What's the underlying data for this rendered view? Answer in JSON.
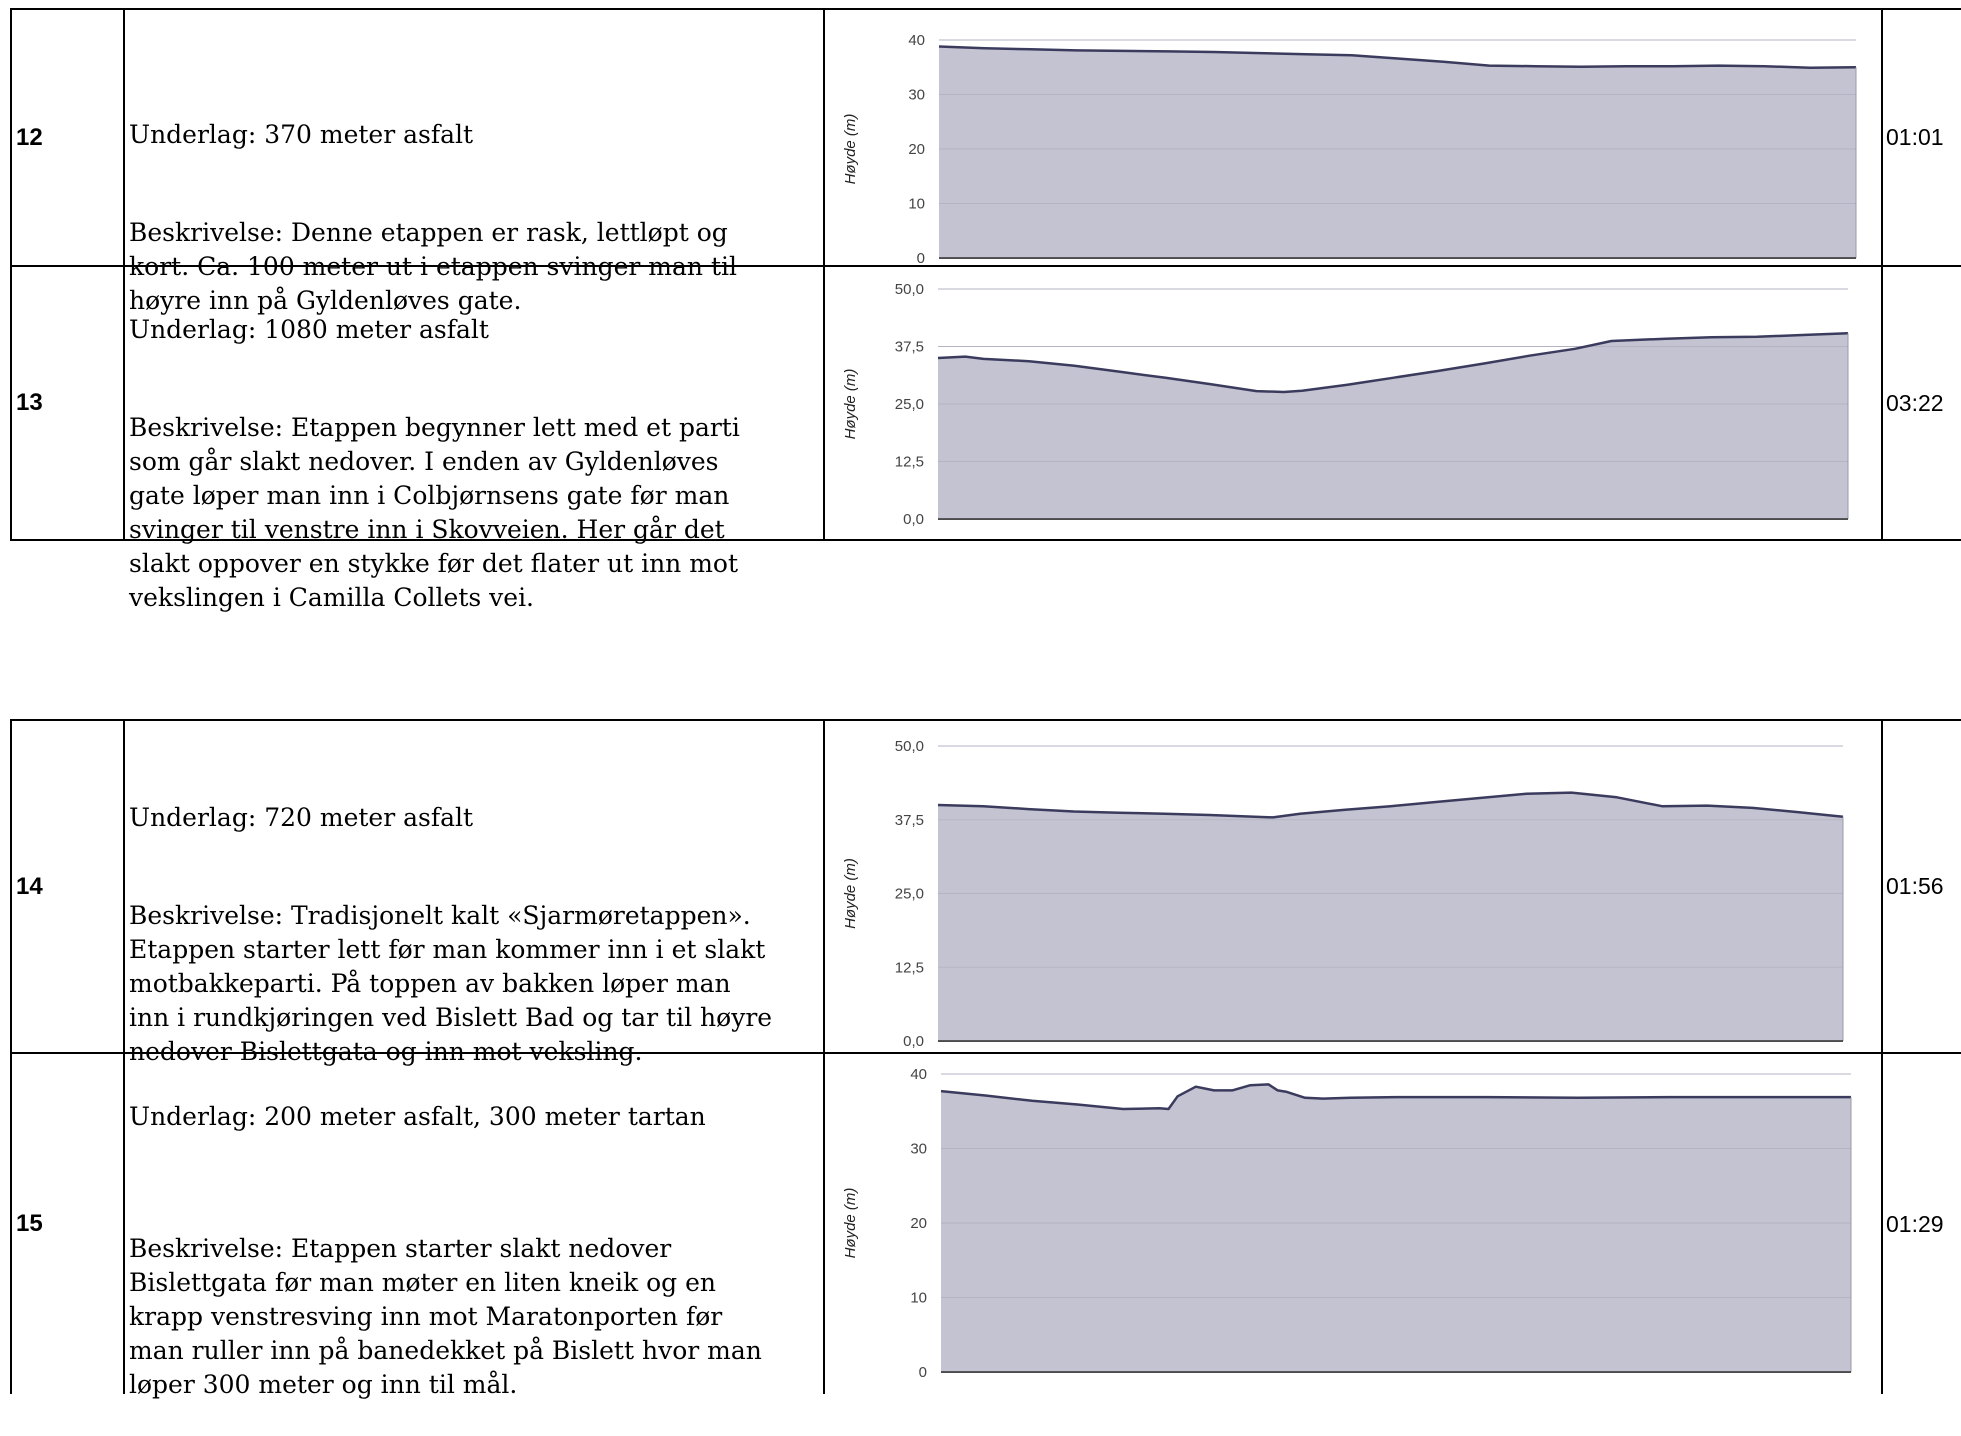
{
  "rows": [
    {
      "stage": "12",
      "surface": "Underlag: 370 meter asfalt",
      "description": "Beskrivelse: Denne etappen er rask, lettløpt og\nkort. Ca. 100 meter ut i etappen svinger man til\nhøyre inn på Gyldenløves gate.",
      "time": "01:01"
    },
    {
      "stage": "13",
      "surface": "Underlag: 1080 meter asfalt",
      "description": "Beskrivelse: Etappen begynner lett med et parti\nsom går slakt nedover. I enden av Gyldenløves\ngate løper man inn i Colbjørnsens gate før man\nsvinger til venstre inn i Skovveien. Her går det\nslakt oppover en stykke før det flater ut inn mot\nvekslingen i Camilla Collets vei.",
      "time": "03:22"
    },
    {
      "stage": "14",
      "surface": "Underlag: 720 meter asfalt",
      "description": "Beskrivelse: Tradisjonelt kalt «Sjarmøretappen».\nEtappen starter lett før man kommer inn i et slakt\nmotbakkeparti. På toppen av bakken løper man\ninn i rundkjøringen ved Bislett Bad og tar til høyre\nnedover Bislettgata og inn mot veksling.",
      "time": "01:56"
    },
    {
      "stage": "15",
      "surface": "Underlag: 200 meter asfalt, 300 meter tartan",
      "description": "Beskrivelse: Etappen starter slakt nedover\nBislettgata før man møter en liten kneik og en\nkrapp venstresving inn mot Maratonporten før\nman ruller inn på banedekket på Bislett hvor man\nløper 300 meter og inn til mål.",
      "time": "01:29"
    }
  ],
  "chart_data": [
    {
      "type": "area",
      "ylabel": "Høyde (m)",
      "ylim": [
        0,
        40
      ],
      "yticks": [
        "0",
        "10",
        "20",
        "30",
        "40"
      ],
      "grid": true,
      "color": "#c3c3d1",
      "line_color": "#3b3b5e",
      "x": [
        0,
        0.05,
        0.1,
        0.15,
        0.2,
        0.25,
        0.3,
        0.35,
        0.4,
        0.45,
        0.5,
        0.55,
        0.6,
        0.65,
        0.7,
        0.75,
        0.8,
        0.85,
        0.9,
        0.95,
        1.0
      ],
      "values": [
        38.8,
        38.5,
        38.3,
        38.1,
        38.0,
        37.9,
        37.8,
        37.6,
        37.4,
        37.2,
        36.6,
        36.0,
        35.3,
        35.2,
        35.1,
        35.2,
        35.2,
        35.3,
        35.2,
        34.9,
        35.0
      ]
    },
    {
      "type": "area",
      "ylabel": "Høyde (m)",
      "ylim": [
        0,
        50
      ],
      "yticks": [
        "0,0",
        "12,5",
        "25,0",
        "37,5",
        "50,0"
      ],
      "grid": true,
      "color": "#c3c3d1",
      "line_color": "#3b3b5e",
      "x": [
        0,
        0.03,
        0.05,
        0.1,
        0.15,
        0.2,
        0.25,
        0.3,
        0.35,
        0.38,
        0.4,
        0.45,
        0.5,
        0.55,
        0.6,
        0.65,
        0.7,
        0.74,
        0.8,
        0.85,
        0.9,
        0.95,
        1.0
      ],
      "values": [
        35.0,
        35.3,
        34.8,
        34.3,
        33.3,
        32.0,
        30.7,
        29.3,
        27.8,
        27.6,
        27.9,
        29.2,
        30.7,
        32.2,
        33.8,
        35.5,
        37.0,
        38.7,
        39.2,
        39.5,
        39.6,
        40.0,
        40.4
      ]
    },
    {
      "type": "area",
      "ylabel": "Høyde (m)",
      "ylim": [
        0,
        50
      ],
      "yticks": [
        "0,0",
        "12,5",
        "25,0",
        "37,5",
        "50,0"
      ],
      "grid": true,
      "color": "#c3c3d1",
      "line_color": "#3b3b5e",
      "x": [
        0,
        0.05,
        0.1,
        0.15,
        0.2,
        0.25,
        0.3,
        0.35,
        0.37,
        0.4,
        0.45,
        0.5,
        0.55,
        0.6,
        0.65,
        0.7,
        0.75,
        0.8,
        0.85,
        0.9,
        0.95,
        1.0
      ],
      "values": [
        40.0,
        39.8,
        39.3,
        38.9,
        38.7,
        38.5,
        38.3,
        38.0,
        37.9,
        38.5,
        39.2,
        39.8,
        40.5,
        41.2,
        41.9,
        42.1,
        41.3,
        39.8,
        39.9,
        39.5,
        38.8,
        38.0
      ]
    },
    {
      "type": "area",
      "ylabel": "Høyde (m)",
      "ylim": [
        0,
        40
      ],
      "yticks": [
        "0",
        "10",
        "20",
        "30",
        "40"
      ],
      "grid": true,
      "color": "#c3c3d1",
      "line_color": "#3b3b5e",
      "x": [
        0,
        0.05,
        0.1,
        0.15,
        0.2,
        0.24,
        0.25,
        0.26,
        0.28,
        0.3,
        0.32,
        0.34,
        0.36,
        0.37,
        0.38,
        0.4,
        0.42,
        0.45,
        0.5,
        0.6,
        0.7,
        0.8,
        0.9,
        1.0
      ],
      "values": [
        37.7,
        37.1,
        36.4,
        35.9,
        35.3,
        35.4,
        35.3,
        37.0,
        38.3,
        37.8,
        37.8,
        38.5,
        38.6,
        37.8,
        37.6,
        36.8,
        36.7,
        36.8,
        36.9,
        36.9,
        36.8,
        36.9,
        36.9,
        36.9
      ]
    }
  ]
}
